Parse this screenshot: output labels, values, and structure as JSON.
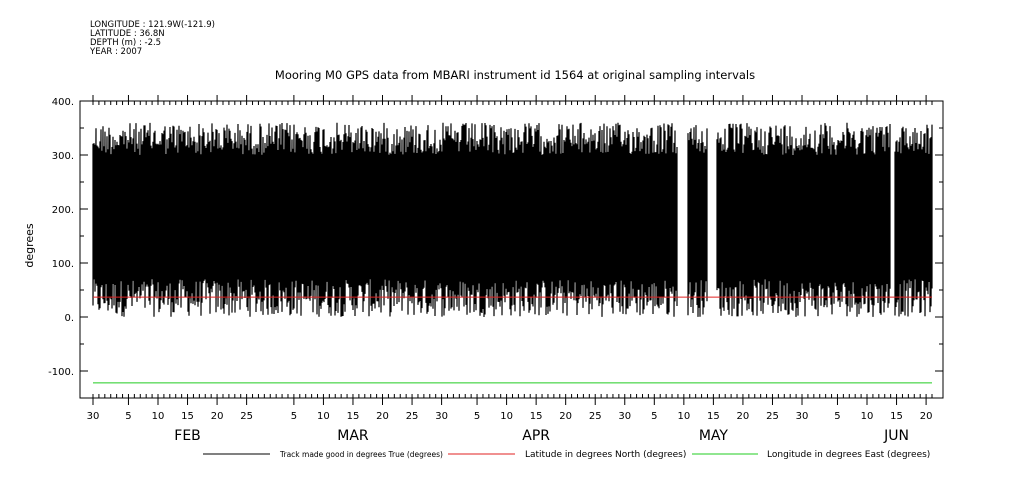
{
  "meta": {
    "longitude": "LONGITUDE : 121.9W(-121.9)",
    "latitude": "LATITUDE : 36.8N",
    "depth": "DEPTH (m) : -2.5",
    "year": "YEAR : 2007"
  },
  "chart_data": {
    "type": "line",
    "title": "Mooring M0 GPS data from MBARI instrument id 1564 at original sampling intervals",
    "xlabel": "",
    "ylabel": "degrees",
    "x_range": [
      "2007-01-30",
      "2007-06-21"
    ],
    "ylim": [
      -150,
      400
    ],
    "y_ticks": [
      400,
      300,
      200,
      100,
      0,
      -100
    ],
    "y_tick_labels": [
      "400.",
      "300.",
      "200.",
      "100.",
      "0.",
      "-100."
    ],
    "x_tick_labels": [
      {
        "date": "2007-01-30",
        "label": "30"
      },
      {
        "date": "2007-02-05",
        "label": "5"
      },
      {
        "date": "2007-02-10",
        "label": "10"
      },
      {
        "date": "2007-02-15",
        "label": "15"
      },
      {
        "date": "2007-02-20",
        "label": "20"
      },
      {
        "date": "2007-02-25",
        "label": "25"
      },
      {
        "date": "2007-03-05",
        "label": "5"
      },
      {
        "date": "2007-03-10",
        "label": "10"
      },
      {
        "date": "2007-03-15",
        "label": "15"
      },
      {
        "date": "2007-03-20",
        "label": "20"
      },
      {
        "date": "2007-03-25",
        "label": "25"
      },
      {
        "date": "2007-03-30",
        "label": "30"
      },
      {
        "date": "2007-04-05",
        "label": "5"
      },
      {
        "date": "2007-04-10",
        "label": "10"
      },
      {
        "date": "2007-04-15",
        "label": "15"
      },
      {
        "date": "2007-04-20",
        "label": "20"
      },
      {
        "date": "2007-04-25",
        "label": "25"
      },
      {
        "date": "2007-04-30",
        "label": "30"
      },
      {
        "date": "2007-05-05",
        "label": "5"
      },
      {
        "date": "2007-05-10",
        "label": "10"
      },
      {
        "date": "2007-05-15",
        "label": "15"
      },
      {
        "date": "2007-05-20",
        "label": "20"
      },
      {
        "date": "2007-05-25",
        "label": "25"
      },
      {
        "date": "2007-05-30",
        "label": "30"
      },
      {
        "date": "2007-06-05",
        "label": "5"
      },
      {
        "date": "2007-06-10",
        "label": "10"
      },
      {
        "date": "2007-06-15",
        "label": "15"
      },
      {
        "date": "2007-06-20",
        "label": "20"
      }
    ],
    "months": [
      {
        "date": "2007-02-15",
        "label": "FEB"
      },
      {
        "date": "2007-03-15",
        "label": "MAR"
      },
      {
        "date": "2007-04-15",
        "label": "APR"
      },
      {
        "date": "2007-05-15",
        "label": "MAY"
      },
      {
        "date": "2007-06-15",
        "label": "JUN"
      }
    ],
    "grid": false,
    "legend_position": "bottom",
    "series": [
      {
        "name": "Track made good in degrees True (degrees)",
        "color": "#000000",
        "style": "dense-noise",
        "value_range": [
          0,
          360
        ],
        "gaps": [
          {
            "start": "2007-05-09",
            "end": "2007-05-10"
          },
          {
            "start": "2007-05-14",
            "end": "2007-05-15"
          },
          {
            "start": "2007-06-14",
            "end": "2007-06-14"
          }
        ]
      },
      {
        "name": "Latitude in degrees North (degrees)",
        "color": "#e02020",
        "values": [
          36.8,
          36.8
        ]
      },
      {
        "name": "Longitude in degrees East (degrees)",
        "color": "#22cc22",
        "values": [
          -121.9,
          -121.9
        ]
      }
    ]
  }
}
